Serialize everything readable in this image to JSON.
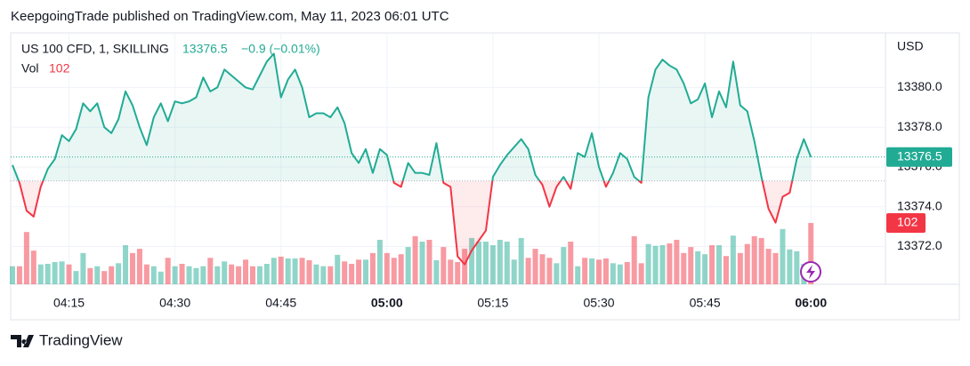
{
  "header": "KeepgoingTrade published on TradingView.com, May 11, 2023 06:01 UTC",
  "footer": "TradingView",
  "chart_data": {
    "type": "baseline",
    "symbol": "US 100 CFD, 1, SKILLING",
    "change": "−0.9 (−0.01%)",
    "volume_label": "Vol",
    "axis_label": "USD",
    "up_color": "#22ab94",
    "down_color": "#f23645",
    "baseline": 13375.3,
    "categories": [
      "04:07",
      "04:08",
      "04:09",
      "04:10",
      "04:11",
      "04:12",
      "04:13",
      "04:14",
      "04:15",
      "04:16",
      "04:17",
      "04:18",
      "04:19",
      "04:20",
      "04:21",
      "04:22",
      "04:23",
      "04:24",
      "04:25",
      "04:26",
      "04:27",
      "04:28",
      "04:29",
      "04:30",
      "04:31",
      "04:32",
      "04:33",
      "04:34",
      "04:35",
      "04:36",
      "04:37",
      "04:38",
      "04:39",
      "04:40",
      "04:41",
      "04:42",
      "04:43",
      "04:44",
      "04:45",
      "04:46",
      "04:47",
      "04:48",
      "04:49",
      "04:50",
      "04:51",
      "04:52",
      "04:53",
      "04:54",
      "04:55",
      "04:56",
      "04:57",
      "04:58",
      "04:59",
      "05:00",
      "05:01",
      "05:02",
      "05:03",
      "05:04",
      "05:05",
      "05:06",
      "05:07",
      "05:08",
      "05:09",
      "05:10",
      "05:11",
      "05:12",
      "05:13",
      "05:14",
      "05:15",
      "05:16",
      "05:17",
      "05:18",
      "05:19",
      "05:20",
      "05:21",
      "05:22",
      "05:23",
      "05:24",
      "05:25",
      "05:26",
      "05:27",
      "05:28",
      "05:29",
      "05:30",
      "05:31",
      "05:32",
      "05:33",
      "05:34",
      "05:35",
      "05:36",
      "05:37",
      "05:38",
      "05:39",
      "05:40",
      "05:41",
      "05:42",
      "05:43",
      "05:44",
      "05:45",
      "05:46",
      "05:47",
      "05:48",
      "05:49",
      "05:50",
      "05:51",
      "05:52",
      "05:53",
      "05:54",
      "05:55",
      "05:56",
      "05:57",
      "05:58",
      "05:59",
      "06:00"
    ],
    "xticks": [
      "04:15",
      "04:30",
      "04:45",
      "05:00",
      "05:15",
      "05:30",
      "05:45",
      "06:00"
    ],
    "values": [
      13376.1,
      13375.2,
      13373.8,
      13373.5,
      13375.0,
      13375.9,
      13376.4,
      13377.6,
      13377.3,
      13377.9,
      13379.2,
      13378.8,
      13379.2,
      13378.0,
      13377.7,
      13378.4,
      13379.8,
      13379.1,
      13378.0,
      13377.1,
      13378.5,
      13379.2,
      13378.3,
      13379.3,
      13379.2,
      13379.3,
      13379.5,
      13380.5,
      13379.8,
      13380.0,
      13380.9,
      13380.6,
      13380.3,
      13380.0,
      13379.9,
      13380.6,
      13381.3,
      13381.7,
      13379.5,
      13380.4,
      13380.9,
      13380.0,
      13378.5,
      13378.7,
      13378.7,
      13378.5,
      13379.0,
      13378.2,
      13376.7,
      13376.2,
      13376.9,
      13375.7,
      13376.9,
      13376.6,
      13375.2,
      13375.0,
      13376.2,
      13375.7,
      13375.7,
      13375.6,
      13377.2,
      13375.2,
      13375.0,
      13371.5,
      13371.1,
      13371.8,
      13372.3,
      13372.8,
      13375.5,
      13376.1,
      13376.6,
      13377.0,
      13377.4,
      13376.9,
      13375.6,
      13375.1,
      13374.0,
      13375.0,
      13375.5,
      13374.9,
      13376.7,
      13376.5,
      13377.7,
      13376.0,
      13375.0,
      13375.7,
      13376.7,
      13376.4,
      13375.5,
      13375.2,
      13379.5,
      13380.9,
      13381.4,
      13381.1,
      13380.9,
      13380.2,
      13379.2,
      13379.4,
      13380.2,
      13378.5,
      13379.8,
      13379.0,
      13381.3,
      13379.1,
      13378.8,
      13377.3,
      13375.5,
      13373.9,
      13373.2,
      13374.5,
      13374.7,
      13376.4,
      13377.4,
      13376.5
    ],
    "volume": [
      30,
      30,
      87,
      56,
      33,
      34,
      37,
      38,
      33,
      22,
      52,
      27,
      30,
      22,
      30,
      35,
      65,
      52,
      59,
      33,
      30,
      21,
      44,
      30,
      34,
      30,
      27,
      30,
      44,
      30,
      38,
      33,
      30,
      41,
      30,
      30,
      34,
      44,
      46,
      43,
      43,
      44,
      40,
      33,
      30,
      30,
      49,
      38,
      34,
      41,
      41,
      52,
      74,
      52,
      44,
      50,
      62,
      80,
      71,
      74,
      40,
      62,
      41,
      37,
      59,
      77,
      71,
      71,
      65,
      74,
      71,
      41,
      77,
      44,
      59,
      50,
      44,
      35,
      62,
      71,
      30,
      44,
      43,
      41,
      43,
      35,
      33,
      37,
      80,
      35,
      67,
      64,
      65,
      68,
      74,
      52,
      62,
      55,
      50,
      65,
      65,
      47,
      81,
      52,
      67,
      80,
      77,
      59,
      52,
      92,
      58,
      55,
      34,
      102
    ],
    "ylim": [
      13370.1,
      13382.7
    ],
    "yticks": [
      {
        "value": 13372,
        "label": "13372.0"
      },
      {
        "value": 13374,
        "label": "13374.0"
      },
      {
        "value": 13376,
        "label": "13376.0"
      },
      {
        "value": 13378,
        "label": "13378.0"
      },
      {
        "value": 13380,
        "label": "13380.0"
      }
    ],
    "y2lim": [
      0,
      417
    ],
    "grid": true
  }
}
